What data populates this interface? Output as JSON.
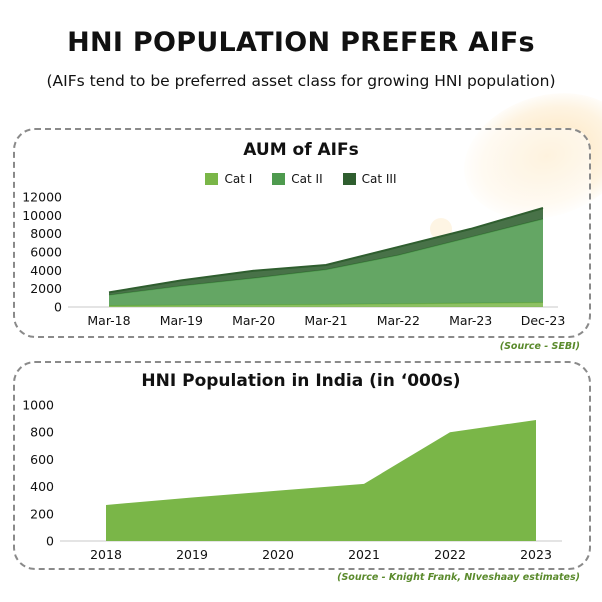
{
  "header": {
    "title": "HNI POPULATION PREFER AIFs",
    "subtitle": "(AIFs tend to be preferred asset class for growing HNI population)"
  },
  "chart_data": [
    {
      "type": "area",
      "stacked": true,
      "title": "AUM of AIFs",
      "categories": [
        "Mar-18",
        "Mar-19",
        "Mar-20",
        "Mar-21",
        "Mar-22",
        "Mar-23",
        "Dec-23"
      ],
      "series": [
        {
          "name": "Cat I",
          "color": "#7ab648",
          "values": [
            150,
            200,
            250,
            280,
            350,
            420,
            500
          ]
        },
        {
          "name": "Cat II",
          "color": "#4e9a4e",
          "values": [
            1150,
            2100,
            2900,
            3800,
            5300,
            7200,
            9100
          ]
        },
        {
          "name": "Cat III",
          "color": "#2f5e2f",
          "values": [
            300,
            600,
            800,
            500,
            900,
            900,
            1200
          ]
        }
      ],
      "ylim": [
        0,
        12000
      ],
      "yticks": [
        0,
        2000,
        4000,
        6000,
        8000,
        10000,
        12000
      ],
      "legend": "top",
      "grid": false,
      "source": "(Source - SEBI)"
    },
    {
      "type": "area",
      "title": "HNI Population in India (in ‘000s)",
      "categories": [
        "2018",
        "2019",
        "2020",
        "2021",
        "2022",
        "2023"
      ],
      "series": [
        {
          "color": "#7ab648",
          "values": [
            265,
            320,
            370,
            420,
            800,
            890
          ]
        }
      ],
      "ylim": [
        0,
        1000
      ],
      "yticks": [
        0,
        200,
        400,
        600,
        800,
        1000
      ],
      "grid": false,
      "source": "(Source - Knight Frank, NIveshaay estimates)"
    }
  ]
}
